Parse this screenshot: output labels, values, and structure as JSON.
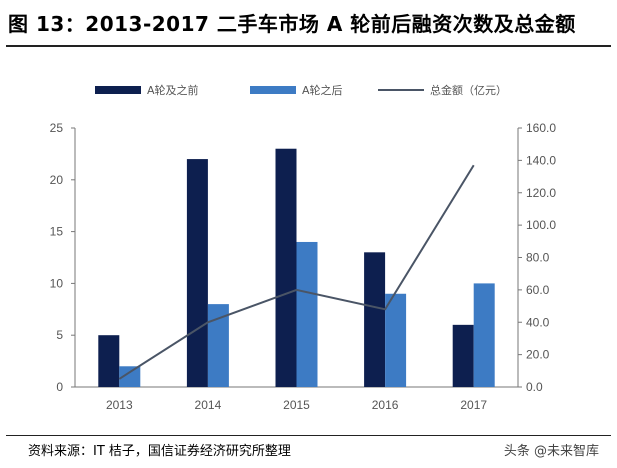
{
  "header": {
    "title": "图 13：2013-2017 二手车市场 A 轮前后融资次数及总金额"
  },
  "footer": {
    "source": "资料来源：IT 桔子，国信证券经济研究所整理",
    "watermark": "头条 @未来智库"
  },
  "chart_data": {
    "type": "bar",
    "categories": [
      "2013",
      "2014",
      "2015",
      "2016",
      "2017"
    ],
    "series": [
      {
        "name": "A轮及之前",
        "type": "bar",
        "axis": "left",
        "color": "#0d1f4f",
        "values": [
          5,
          22,
          23,
          13,
          6
        ]
      },
      {
        "name": "A轮之后",
        "type": "bar",
        "axis": "left",
        "color": "#3d7bc4",
        "values": [
          2,
          8,
          14,
          9,
          10
        ]
      },
      {
        "name": "总金额（亿元）",
        "type": "line",
        "axis": "right",
        "color": "#4a5566",
        "values": [
          5,
          40,
          60,
          48,
          137
        ]
      }
    ],
    "left_axis": {
      "ylim": [
        0,
        25
      ],
      "ticks": [
        "0",
        "5",
        "10",
        "15",
        "20",
        "25"
      ]
    },
    "right_axis": {
      "ylim": [
        0,
        160
      ],
      "ticks": [
        "0.0",
        "20.0",
        "40.0",
        "60.0",
        "80.0",
        "100.0",
        "120.0",
        "140.0",
        "160.0"
      ]
    },
    "legend_position": "top",
    "grid": false
  }
}
